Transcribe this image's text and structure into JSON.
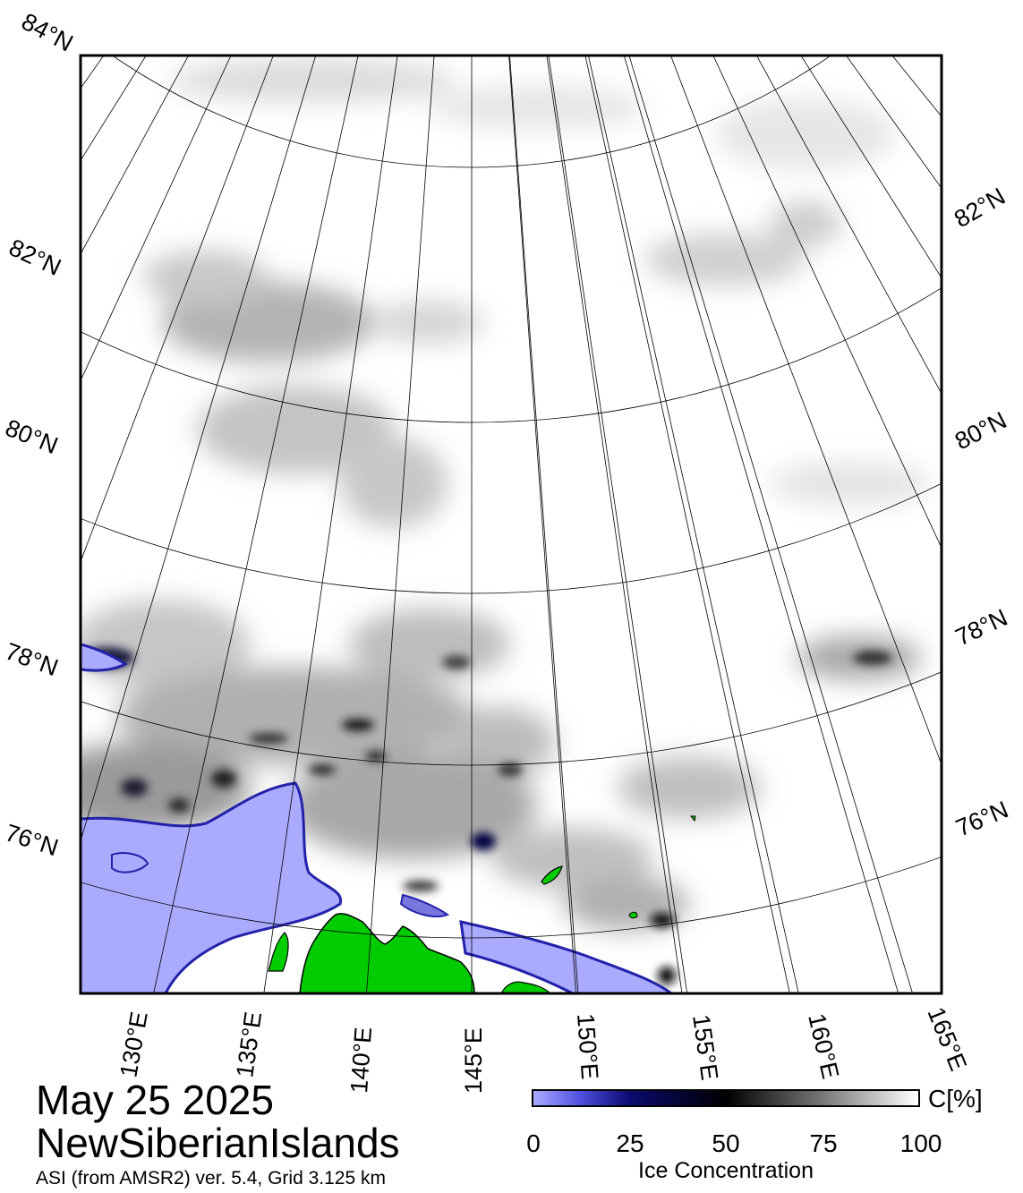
{
  "map": {
    "region": "NewSiberianIslands",
    "date": "May 25 2025",
    "subtitle": "ASI (from AMSR2) ver. 5.4,  Grid 3.125 km",
    "projection": "polar stereographic",
    "latitude_labels_left": [
      "84°N",
      "82°N",
      "80°N",
      "78°N",
      "76°N"
    ],
    "latitude_labels_right": [
      "82°N",
      "80°N",
      "78°N",
      "76°N"
    ],
    "longitude_labels": [
      "130°E",
      "135°E",
      "140°E",
      "145°E",
      "150°E",
      "155°E",
      "160°E",
      "165°E"
    ],
    "land_color": "#00cc00",
    "low_concentration_color": "#aaaaff",
    "background_color": "#ffffff"
  },
  "colorbar": {
    "ticks": [
      "0",
      "25",
      "50",
      "75",
      "100"
    ],
    "unit": "C[%]",
    "label": "Ice Concentration",
    "stops": [
      "#aaaaff",
      "#0a0a70",
      "#000000",
      "#777777",
      "#ffffff"
    ]
  }
}
